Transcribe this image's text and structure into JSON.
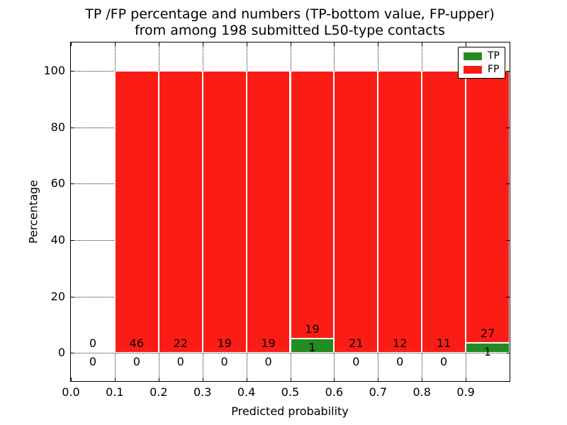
{
  "chart_data": {
    "type": "bar",
    "value_mode": "percent_stacked",
    "title_lines": [
      "TP /FP percentage and numbers (TP-bottom value, FP-upper)",
      "from among 198 submitted L50-type contacts"
    ],
    "xlabel": "Predicted probability",
    "ylabel": "Percentage",
    "total_contacts": 198,
    "xlim": [
      0.0,
      1.0
    ],
    "ylim": [
      -10,
      110
    ],
    "grid": "dotted",
    "xticks": [
      0.0,
      0.1,
      0.2,
      0.3,
      0.4,
      0.5,
      0.6,
      0.7,
      0.8,
      0.9
    ],
    "xtick_labels": [
      "0.0",
      "0.1",
      "0.2",
      "0.3",
      "0.4",
      "0.5",
      "0.6",
      "0.7",
      "0.8",
      "0.9"
    ],
    "yticks": [
      0,
      20,
      40,
      60,
      80,
      100
    ],
    "ytick_labels": [
      "0",
      "20",
      "40",
      "60",
      "80",
      "100"
    ],
    "bins": [
      {
        "range": [
          0.0,
          0.1
        ],
        "tp": 0,
        "fp": 0
      },
      {
        "range": [
          0.1,
          0.2
        ],
        "tp": 0,
        "fp": 46
      },
      {
        "range": [
          0.2,
          0.3
        ],
        "tp": 0,
        "fp": 22
      },
      {
        "range": [
          0.3,
          0.4
        ],
        "tp": 0,
        "fp": 19
      },
      {
        "range": [
          0.4,
          0.5
        ],
        "tp": 0,
        "fp": 19
      },
      {
        "range": [
          0.5,
          0.6
        ],
        "tp": 1,
        "fp": 19
      },
      {
        "range": [
          0.6,
          0.7
        ],
        "tp": 0,
        "fp": 21
      },
      {
        "range": [
          0.7,
          0.8
        ],
        "tp": 0,
        "fp": 12
      },
      {
        "range": [
          0.8,
          0.9
        ],
        "tp": 0,
        "fp": 11
      },
      {
        "range": [
          0.9,
          1.0
        ],
        "tp": 1,
        "fp": 27
      }
    ],
    "legend": {
      "position": "upper right",
      "entries": [
        {
          "label": "TP",
          "color": "#228b22"
        },
        {
          "label": "FP",
          "color": "#fb1d15"
        }
      ]
    }
  }
}
